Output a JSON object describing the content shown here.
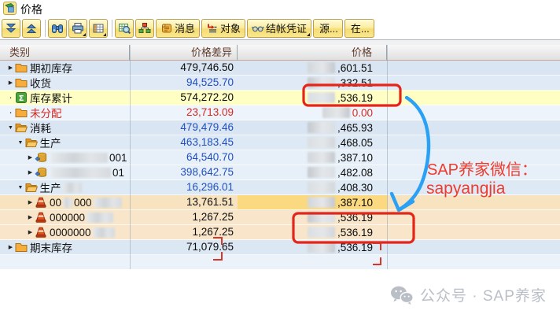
{
  "window": {
    "title": "价格"
  },
  "toolbar": {
    "buttons": [
      {
        "id": "expand-all",
        "icon": "expand-all-icon"
      },
      {
        "id": "collapse-all",
        "icon": "collapse-all-icon"
      },
      {
        "id": "find",
        "icon": "binoculars-icon",
        "sep_before": true
      },
      {
        "id": "print",
        "icon": "printer-icon",
        "dropdown": true
      },
      {
        "id": "layout",
        "icon": "layout-grid-icon",
        "dropdown": true
      },
      {
        "id": "display-details",
        "icon": "magnifier-table-icon",
        "sep_before": true
      },
      {
        "id": "hierarchy",
        "icon": "hierarchy-icon"
      },
      {
        "id": "messages",
        "icon": "scroll-icon",
        "label": "消息"
      },
      {
        "id": "objects",
        "icon": "object-list-icon",
        "label": "对象"
      },
      {
        "id": "settlement-documents",
        "icon": "glasses-icon",
        "label": "结帐凭证",
        "dropdown": true
      },
      {
        "id": "source",
        "label": "源..."
      },
      {
        "id": "in",
        "label": "在..."
      }
    ]
  },
  "table": {
    "headers": {
      "category": "类别",
      "price_diff": "价格差异",
      "price": "价格"
    },
    "rows": [
      {
        "level": 0,
        "arrow": "right",
        "icon": "folder-icon",
        "label_parts": [
          {
            "text": "期初库存"
          }
        ],
        "diff": "479,746.50",
        "diff_color": "black",
        "price": ",601.51",
        "price_color": "black",
        "bg": "#d9e5f2"
      },
      {
        "level": 0,
        "arrow": "right",
        "icon": "folder-icon",
        "label_parts": [
          {
            "text": "收货"
          }
        ],
        "diff": "94,525.70",
        "diff_color": "blue",
        "price": ",332.51",
        "price_color": "black",
        "bg": "#e0eaf6"
      },
      {
        "level": 0,
        "arrow": "dot",
        "icon": "sigma-icon",
        "label_parts": [
          {
            "text": "库存累计"
          }
        ],
        "diff": "574,272.20",
        "diff_color": "black",
        "price": ",536.19",
        "price_color": "black",
        "bg": "#ffffc3"
      },
      {
        "level": 0,
        "arrow": "dot",
        "icon": "folder-icon",
        "label_parts": [
          {
            "text": "未分配"
          }
        ],
        "label_color": "red",
        "diff": "23,713.09",
        "diff_color": "red",
        "price": "0.00",
        "price_color": "red",
        "bg": "#eef4fb"
      },
      {
        "level": 0,
        "arrow": "down",
        "icon": "folder-open-icon",
        "label_parts": [
          {
            "text": "消耗"
          }
        ],
        "diff": "479,479.46",
        "diff_color": "blue",
        "price": ",465.93",
        "price_color": "black",
        "bg": "#d9e5f2"
      },
      {
        "level": 1,
        "arrow": "down",
        "icon": "folder-open-icon",
        "label_parts": [
          {
            "text": "生产"
          }
        ],
        "diff": "463,183.45",
        "diff_color": "blue",
        "price": ",468.05",
        "price_color": "black",
        "bg": "#dde9f4"
      },
      {
        "level": 2,
        "arrow": "right",
        "icon": "order-icon",
        "label_parts": [
          {
            "redacted_w": 72
          },
          {
            "text": "001"
          }
        ],
        "diff": "64,540.70",
        "diff_color": "blue",
        "price": ",387.10",
        "price_color": "black",
        "bg": "#e7f0f8"
      },
      {
        "level": 2,
        "arrow": "right",
        "icon": "order-icon",
        "label_parts": [
          {
            "redacted_w": 76
          },
          {
            "text": "01"
          }
        ],
        "diff": "398,642.75",
        "diff_color": "blue",
        "price": ",482.08",
        "price_color": "black",
        "bg": "#e7f0f8"
      },
      {
        "level": 1,
        "arrow": "down",
        "icon": "folder-open-icon",
        "label_parts": [
          {
            "text": "生产"
          },
          {
            "redacted_w": 24
          }
        ],
        "diff": "16,296.01",
        "diff_color": "blue",
        "price": ",408.30",
        "price_color": "black",
        "bg": "#dde9f4"
      },
      {
        "level": 2,
        "arrow": "right",
        "icon": "cost-object-icon",
        "label_parts": [
          {
            "text": "00"
          },
          {
            "redacted_w": 12
          },
          {
            "text": "000"
          },
          {
            "redacted_w": 36
          }
        ],
        "diff": "13,761.51",
        "diff_color": "black",
        "price": ",387.10",
        "price_color": "black",
        "bg": "#f8e3c0",
        "price_bg": "#fbd980"
      },
      {
        "level": 2,
        "arrow": "right",
        "icon": "cost-object-icon",
        "label_parts": [
          {
            "text": "000000"
          },
          {
            "redacted_w": 34
          }
        ],
        "diff": "1,267.25",
        "diff_color": "black",
        "price": ",536.19",
        "price_color": "black",
        "bg": "#f9e6ca"
      },
      {
        "level": 2,
        "arrow": "right",
        "icon": "cost-object-icon",
        "label_parts": [
          {
            "text": "0000000"
          },
          {
            "redacted_w": 28
          }
        ],
        "diff": "1,267.25",
        "diff_color": "black",
        "price": ",536.19",
        "price_color": "black",
        "bg": "#f9e6ca"
      },
      {
        "level": 0,
        "arrow": "right",
        "icon": "folder-icon",
        "label_parts": [
          {
            "text": "期末库存"
          }
        ],
        "diff": "71,079.65",
        "diff_color": "black",
        "price": ",536.19",
        "price_color": "black",
        "bg": "#dbe7f3"
      }
    ]
  },
  "overlay": {
    "note_line1": "SAP养家微信：",
    "note_line2": "sapyangjia",
    "highlight_color": "#e32619",
    "arrow_color": "#2ba1f5"
  },
  "watermark": {
    "text": "公众号 · SAP养家"
  }
}
